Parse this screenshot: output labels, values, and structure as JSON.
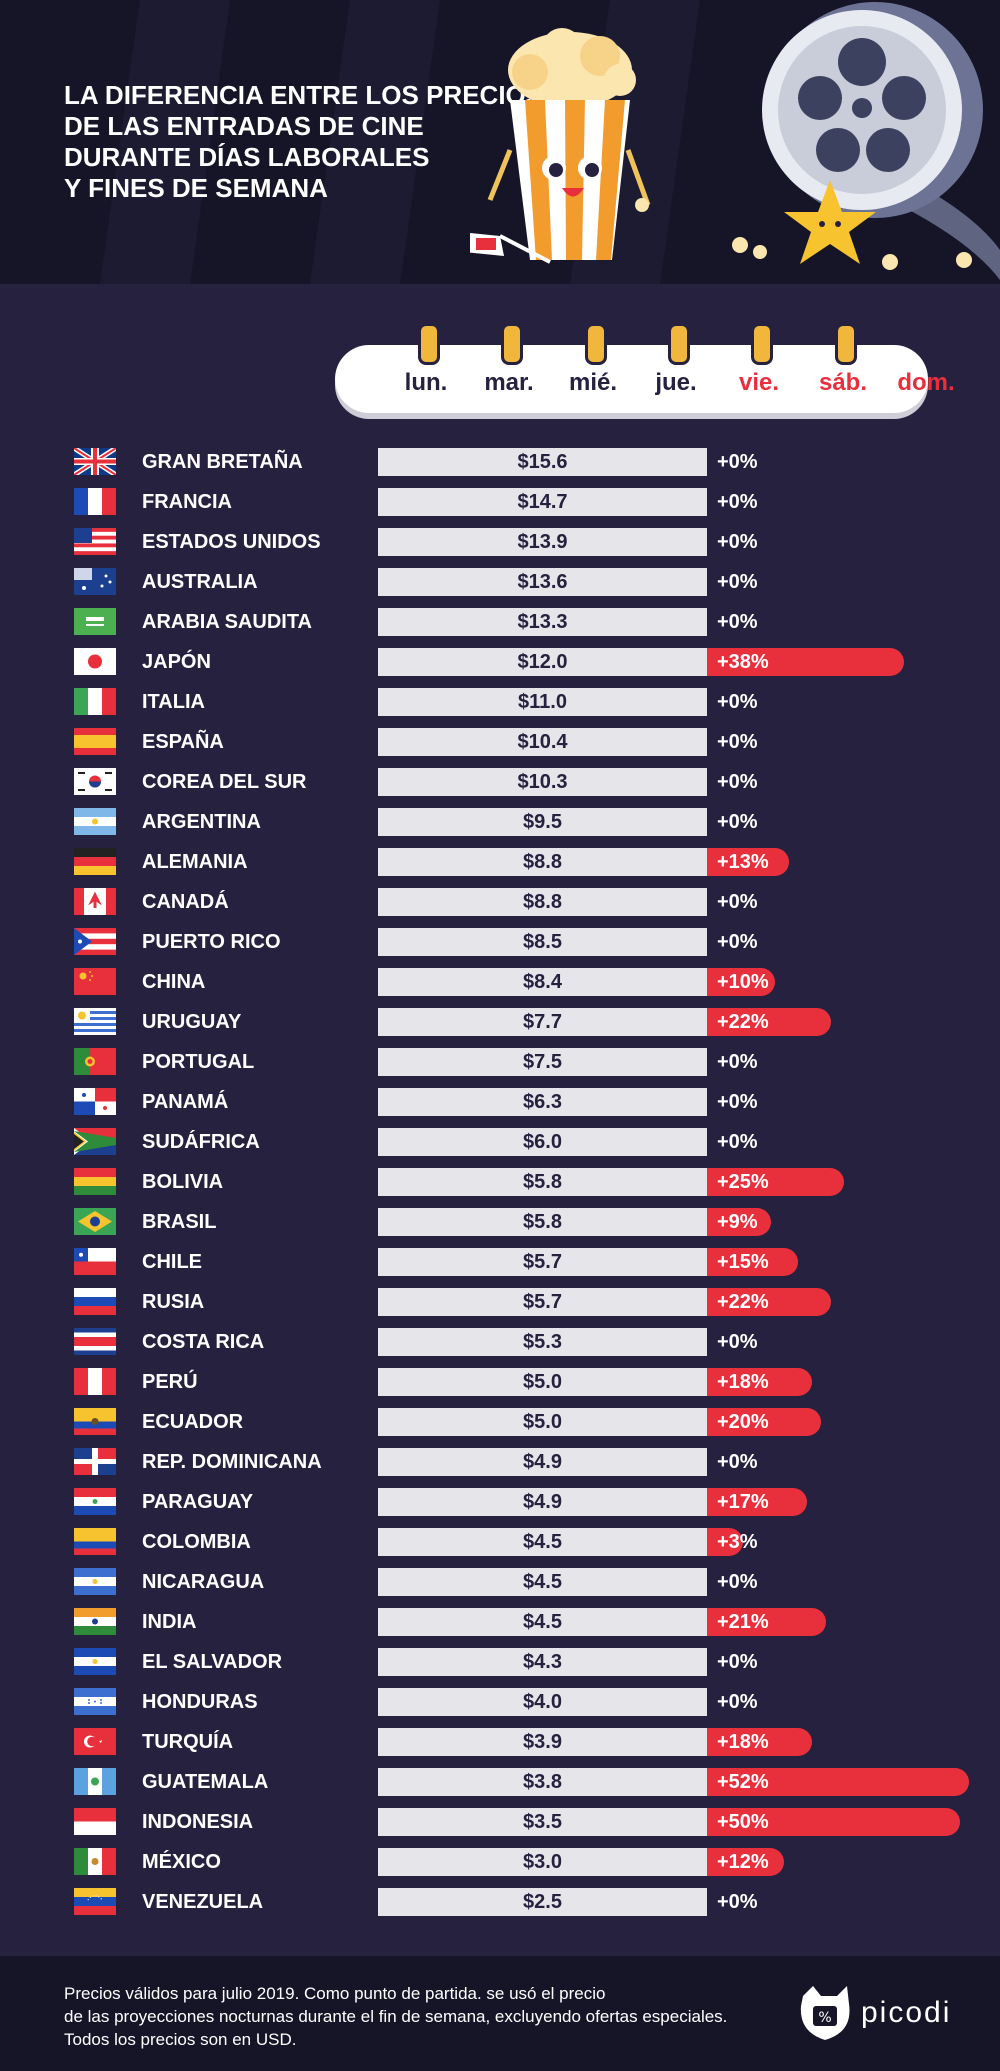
{
  "title_lines": [
    "LA DIFERENCIA ENTRE LOS PRECIOS",
    "DE LAS ENTRADAS DE CINE",
    "DURANTE DÍAS LABORALES",
    "Y FINES DE SEMANA"
  ],
  "calendar": {
    "days": [
      "lun.",
      "mar.",
      "mié.",
      "jue.",
      "vie.",
      "sáb.",
      "dom."
    ],
    "weekend_from_index": 4
  },
  "colors": {
    "background": "#25213f",
    "header": "#161528",
    "bar": "#e6e6ea",
    "accent": "#e8303d",
    "text": "#ffffff"
  },
  "chart_data": {
    "type": "bar",
    "orientation": "horizontal",
    "categories": [
      "GRAN BRETAÑA",
      "FRANCIA",
      "ESTADOS UNIDOS",
      "AUSTRALIA",
      "ARABIA SAUDITA",
      "JAPÓN",
      "ITALIA",
      "ESPAÑA",
      "COREA DEL SUR",
      "ARGENTINA",
      "ALEMANIA",
      "CANADÁ",
      "PUERTO RICO",
      "CHINA",
      "URUGUAY",
      "PORTUGAL",
      "PANAMÁ",
      "SUDÁFRICA",
      "BOLIVIA",
      "BRASIL",
      "CHILE",
      "RUSIA",
      "COSTA RICA",
      "PERÚ",
      "ECUADOR",
      "REP. DOMINICANA",
      "PARAGUAY",
      "COLOMBIA",
      "NICARAGUA",
      "INDIA",
      "EL SALVADOR",
      "HONDURAS",
      "TURQUÍA",
      "GUATEMALA",
      "INDONESIA",
      "MÉXICO",
      "VENEZUELA"
    ],
    "flags": [
      "gb",
      "fr",
      "us",
      "au",
      "sa",
      "jp",
      "it",
      "es",
      "kr",
      "ar",
      "de",
      "ca",
      "pr",
      "cn",
      "uy",
      "pt",
      "pa",
      "za",
      "bo",
      "br",
      "cl",
      "ru",
      "cr",
      "pe",
      "ec",
      "do",
      "py",
      "co",
      "ni",
      "in",
      "sv",
      "hn",
      "tr",
      "gt",
      "id",
      "mx",
      "ve"
    ],
    "series": [
      {
        "name": "",
        "values": [
          15.6,
          14.7,
          13.9,
          13.6,
          13.3,
          12.0,
          11.0,
          10.4,
          10.3,
          9.5,
          8.8,
          8.8,
          8.5,
          8.4,
          7.7,
          7.5,
          6.3,
          6.0,
          5.8,
          5.8,
          5.7,
          5.7,
          5.3,
          5.0,
          5.0,
          4.9,
          4.9,
          4.5,
          4.5,
          4.5,
          4.3,
          4.0,
          3.9,
          3.8,
          3.5,
          3.0,
          2.5
        ],
        "labels": [
          "$15.6",
          "$14.7",
          "$13.9",
          "$13.6",
          "$13.3",
          "$12.0",
          "$11.0",
          "$10.4",
          "$10.3",
          "$9.5",
          "$8.8",
          "$8.8",
          "$8.5",
          "$8.4",
          "$7.7",
          "$7.5",
          "$6.3",
          "$6.0",
          "$5.8",
          "$5.8",
          "$5.7",
          "$5.7",
          "$5.3",
          "$5.0",
          "$5.0",
          "$4.9",
          "$4.9",
          "$4.5",
          "$4.5",
          "$4.5",
          "$4.3",
          "$4.0",
          "$3.9",
          "$3.8",
          "$3.5",
          "$3.0",
          "$2.5"
        ]
      },
      {
        "name": "",
        "values": [
          0,
          0,
          0,
          0,
          0,
          38,
          0,
          0,
          0,
          0,
          13,
          0,
          0,
          10,
          22,
          0,
          0,
          0,
          25,
          9,
          15,
          22,
          0,
          18,
          20,
          0,
          17,
          3,
          0,
          21,
          0,
          0,
          18,
          52,
          50,
          12,
          0
        ],
        "labels": [
          "+0%",
          "+0%",
          "+0%",
          "+0%",
          "+0%",
          "+38%",
          "+0%",
          "+0%",
          "+0%",
          "+0%",
          "+13%",
          "+0%",
          "+0%",
          "+10%",
          "+22%",
          "+0%",
          "+0%",
          "+0%",
          "+25%",
          "+9%",
          "+15%",
          "+22%",
          "+0%",
          "+18%",
          "+20%",
          "+0%",
          "+17%",
          "+3%",
          "+0%",
          "+21%",
          "+0%",
          "+0%",
          "+18%",
          "+52%",
          "+50%",
          "+12%",
          "+0%"
        ]
      }
    ]
  },
  "footnote_lines": [
    "Precios válidos para julio 2019. Como punto de partida. se usó el precio",
    "de las proyecciones nocturnas durante el fin de semana, excluyendo ofertas especiales.",
    "Todos los precios son en USD."
  ],
  "brand": {
    "name": "picodi"
  }
}
